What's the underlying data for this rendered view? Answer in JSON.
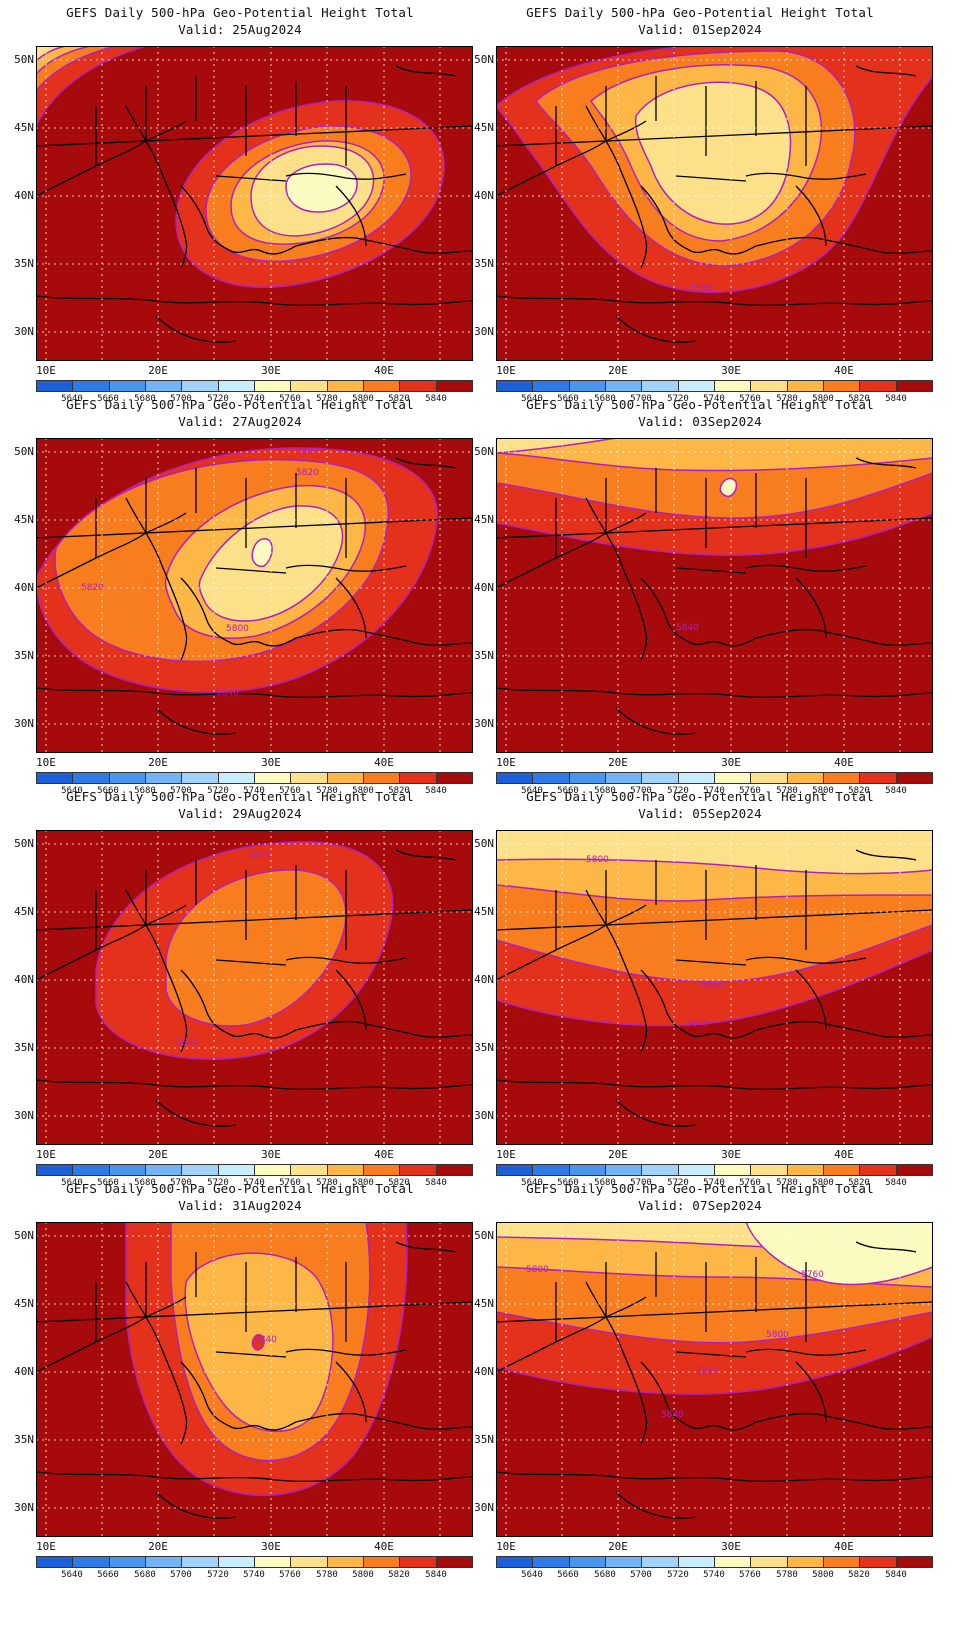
{
  "title": "GEFS Daily 500-hPa Geo-Potential Height Total",
  "lat_labels": [
    "50N",
    "45N",
    "40N",
    "35N",
    "30N"
  ],
  "lon_labels": [
    "10E",
    "20E",
    "30E",
    "40E"
  ],
  "colorbar": {
    "labels": [
      "5640",
      "5660",
      "5680",
      "5700",
      "5720",
      "5740",
      "5760",
      "5780",
      "5800",
      "5820",
      "5840"
    ],
    "colors": [
      "#1c5fd6",
      "#2f79e3",
      "#4c95ec",
      "#75b4f2",
      "#a2d2f8",
      "#c9eefb",
      "#fbfbc0",
      "#fde08a",
      "#fdb747",
      "#f77d1e",
      "#e4311c",
      "#a60a0a"
    ]
  },
  "panels": [
    {
      "valid": "Valid: 25Aug2024",
      "contour_labels": []
    },
    {
      "valid": "Valid: 01Sep2024",
      "contour_labels": [
        "5840"
      ]
    },
    {
      "valid": "Valid: 27Aug2024",
      "contour_labels": [
        "5800",
        "5820",
        "5820",
        "5800",
        "5840"
      ]
    },
    {
      "valid": "Valid: 03Sep2024",
      "contour_labels": [
        "5840"
      ]
    },
    {
      "valid": "Valid: 29Aug2024",
      "contour_labels": [
        "5820",
        "5840"
      ]
    },
    {
      "valid": "Valid: 05Sep2024",
      "contour_labels": [
        "5800",
        "5820",
        "5840"
      ]
    },
    {
      "valid": "Valid: 31Aug2024",
      "contour_labels": [
        "5840"
      ]
    },
    {
      "valid": "Valid: 07Sep2024",
      "contour_labels": [
        "5800",
        "5760",
        "5800",
        "5820",
        "5840"
      ]
    }
  ]
}
